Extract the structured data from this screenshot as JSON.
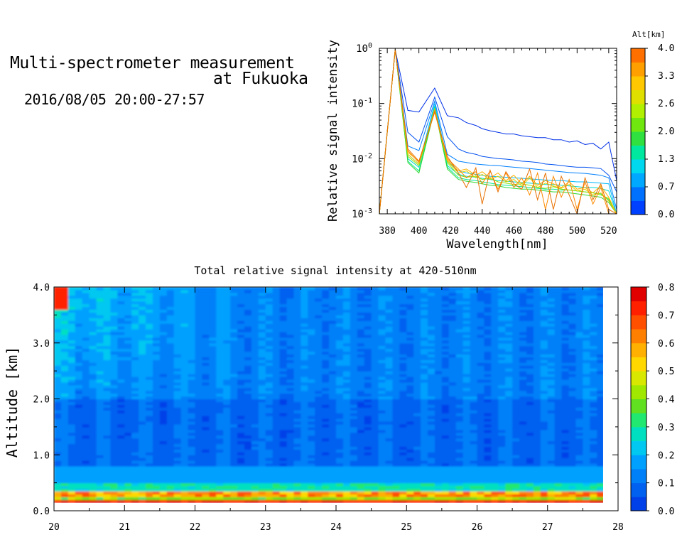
{
  "header": {
    "title_line1": "Multi-spectrometer measurement",
    "title_line2": "at Fukuoka",
    "time_range": "2016/08/05 20:00-27:57"
  },
  "chart_data": [
    {
      "type": "line",
      "xlabel": "Wavelength[nm]",
      "ylabel": "Relative signal intensity",
      "xlim": [
        375,
        525
      ],
      "ylim": [
        0.001,
        1
      ],
      "yscale": "log",
      "x_ticks": [
        "380",
        "400",
        "420",
        "440",
        "460",
        "480",
        "500",
        "520"
      ],
      "y_ticks": [
        {
          "base": "10",
          "exp": "0"
        },
        {
          "base": "10",
          "exp": "-1"
        },
        {
          "base": "10",
          "exp": "-2"
        },
        {
          "base": "10",
          "exp": "-3"
        }
      ],
      "colorbar": {
        "title": "Alt[km]",
        "labels": [
          "4.0",
          "3.3",
          "2.6",
          "2.0",
          "1.3",
          "0.7",
          "0.0"
        ],
        "colors": [
          "#0040ff",
          "#0070ff",
          "#00a8ff",
          "#00d8f0",
          "#00e8a0",
          "#30e040",
          "#70e810",
          "#b0f000",
          "#e0e000",
          "#ffc800",
          "#ffa000",
          "#ff7000"
        ]
      },
      "x": [
        375,
        385,
        393,
        400,
        410,
        418,
        425,
        430,
        436,
        440,
        445,
        450,
        455,
        460,
        465,
        470,
        475,
        480,
        485,
        490,
        495,
        500,
        505,
        510,
        515,
        520,
        525
      ],
      "series": [
        {
          "color": "#0030e8",
          "values": [
            0.001,
            0.95,
            0.075,
            0.07,
            0.19,
            0.06,
            0.055,
            0.045,
            0.04,
            0.035,
            0.032,
            0.03,
            0.028,
            0.028,
            0.026,
            0.025,
            0.024,
            0.024,
            0.022,
            0.022,
            0.02,
            0.021,
            0.018,
            0.019,
            0.015,
            0.02,
            0.004
          ]
        },
        {
          "color": "#0050f0",
          "values": [
            0.001,
            0.95,
            0.03,
            0.02,
            0.13,
            0.025,
            0.015,
            0.013,
            0.012,
            0.011,
            0.0105,
            0.01,
            0.0098,
            0.0095,
            0.009,
            0.0088,
            0.0085,
            0.008,
            0.0078,
            0.0075,
            0.0072,
            0.007,
            0.007,
            0.0068,
            0.0066,
            0.005,
            0.0025
          ]
        },
        {
          "color": "#0080ff",
          "values": [
            0.001,
            0.95,
            0.017,
            0.014,
            0.11,
            0.012,
            0.009,
            0.0085,
            0.008,
            0.0078,
            0.0076,
            0.0075,
            0.0072,
            0.007,
            0.0068,
            0.0066,
            0.0064,
            0.0062,
            0.006,
            0.0058,
            0.0056,
            0.0055,
            0.0054,
            0.0052,
            0.005,
            0.0045,
            0.0012
          ]
        },
        {
          "color": "#00b8ff",
          "values": [
            0.001,
            0.95,
            0.012,
            0.008,
            0.1,
            0.009,
            0.006,
            0.0055,
            0.0052,
            0.005,
            0.0048,
            0.0047,
            0.0046,
            0.0045,
            0.0044,
            0.0043,
            0.0042,
            0.0041,
            0.004,
            0.004,
            0.0039,
            0.0038,
            0.0038,
            0.0037,
            0.0036,
            0.0035,
            0.001
          ]
        },
        {
          "color": "#00d8d0",
          "values": [
            0.001,
            0.95,
            0.01,
            0.007,
            0.09,
            0.0075,
            0.0052,
            0.0048,
            0.0046,
            0.0044,
            0.0042,
            0.004,
            0.0039,
            0.0038,
            0.0037,
            0.0036,
            0.0035,
            0.0034,
            0.0034,
            0.0033,
            0.0032,
            0.0031,
            0.003,
            0.003,
            0.0029,
            0.0026,
            0.001
          ]
        },
        {
          "color": "#00e890",
          "values": [
            0.001,
            0.95,
            0.009,
            0.006,
            0.085,
            0.007,
            0.0045,
            0.0042,
            0.004,
            0.0038,
            0.0036,
            0.0034,
            0.0033,
            0.0032,
            0.0031,
            0.003,
            0.0029,
            0.0028,
            0.0028,
            0.0027,
            0.0027,
            0.0026,
            0.0025,
            0.0024,
            0.0023,
            0.0018,
            0.001
          ]
        },
        {
          "color": "#30d830",
          "values": [
            0.001,
            0.95,
            0.0085,
            0.0055,
            0.08,
            0.0065,
            0.0042,
            0.0039,
            0.0037,
            0.0035,
            0.0033,
            0.0032,
            0.003,
            0.0029,
            0.0028,
            0.0028,
            0.0027,
            0.0026,
            0.0025,
            0.0025,
            0.0024,
            0.0023,
            0.0022,
            0.0021,
            0.002,
            0.0016,
            0.001
          ]
        },
        {
          "color": "#90e000",
          "values": [
            0.001,
            0.95,
            0.011,
            0.0075,
            0.075,
            0.0085,
            0.005,
            0.0046,
            0.0048,
            0.0042,
            0.0044,
            0.0038,
            0.0036,
            0.0034,
            0.0035,
            0.0033,
            0.003,
            0.0029,
            0.0031,
            0.0028,
            0.0027,
            0.0026,
            0.0025,
            0.0024,
            0.0022,
            0.0019,
            0.001
          ]
        },
        {
          "color": "#e0d000",
          "values": [
            0.001,
            0.95,
            0.012,
            0.008,
            0.08,
            0.009,
            0.0055,
            0.006,
            0.0045,
            0.0052,
            0.0042,
            0.0048,
            0.0038,
            0.0042,
            0.0032,
            0.0045,
            0.003,
            0.0036,
            0.0032,
            0.0029,
            0.0034,
            0.0026,
            0.0028,
            0.0022,
            0.0024,
            0.0017,
            0.001
          ]
        },
        {
          "color": "#ffb000",
          "values": [
            0.001,
            0.95,
            0.013,
            0.009,
            0.07,
            0.0095,
            0.006,
            0.0065,
            0.005,
            0.0058,
            0.0045,
            0.0055,
            0.004,
            0.005,
            0.0035,
            0.0048,
            0.0033,
            0.004,
            0.0035,
            0.003,
            0.0038,
            0.0028,
            0.003,
            0.0024,
            0.0032,
            0.002,
            0.001
          ]
        },
        {
          "color": "#ff8a00",
          "values": [
            0.001,
            0.95,
            0.014,
            0.0085,
            0.075,
            0.01,
            0.0065,
            0.0045,
            0.0058,
            0.0035,
            0.006,
            0.0028,
            0.0055,
            0.003,
            0.0045,
            0.0022,
            0.0055,
            0.0012,
            0.0048,
            0.002,
            0.0042,
            0.0012,
            0.0038,
            0.0015,
            0.003,
            0.001,
            0.001
          ]
        },
        {
          "color": "#e87000",
          "values": [
            0.001,
            0.95,
            0.015,
            0.009,
            0.07,
            0.011,
            0.0055,
            0.003,
            0.0068,
            0.0015,
            0.0062,
            0.0025,
            0.0058,
            0.0035,
            0.0028,
            0.0065,
            0.0018,
            0.0055,
            0.0012,
            0.0048,
            0.0022,
            0.001,
            0.0045,
            0.0018,
            0.0035,
            0.0012,
            0.001
          ]
        }
      ]
    },
    {
      "type": "heatmap",
      "title": "Total relative signal intensity at 420-510nm",
      "ylabel": "Altitude [km]",
      "xlabel": "",
      "xlim": [
        20,
        28
      ],
      "ylim": [
        0,
        4
      ],
      "data_xlim": [
        20,
        27.8
      ],
      "data_ylim": [
        0.15,
        4.0
      ],
      "x_ticks": [
        "20",
        "21",
        "22",
        "23",
        "24",
        "25",
        "26",
        "27",
        "28"
      ],
      "y_ticks": [
        "4.0",
        "3.0",
        "2.0",
        "1.0",
        "0.0"
      ],
      "colorbar": {
        "labels": [
          "0.8",
          "0.7",
          "0.6",
          "0.5",
          "0.4",
          "0.3",
          "0.2",
          "0.1",
          "0.0"
        ],
        "colors": [
          "#0040e8",
          "#0060f0",
          "#0080f8",
          "#00a0ff",
          "#00c8f0",
          "#00e0c0",
          "#20e870",
          "#60e020",
          "#a0e800",
          "#d8e800",
          "#ffd800",
          "#ffb000",
          "#ff8000",
          "#ff5000",
          "#ff2000",
          "#e00000"
        ]
      }
    }
  ]
}
